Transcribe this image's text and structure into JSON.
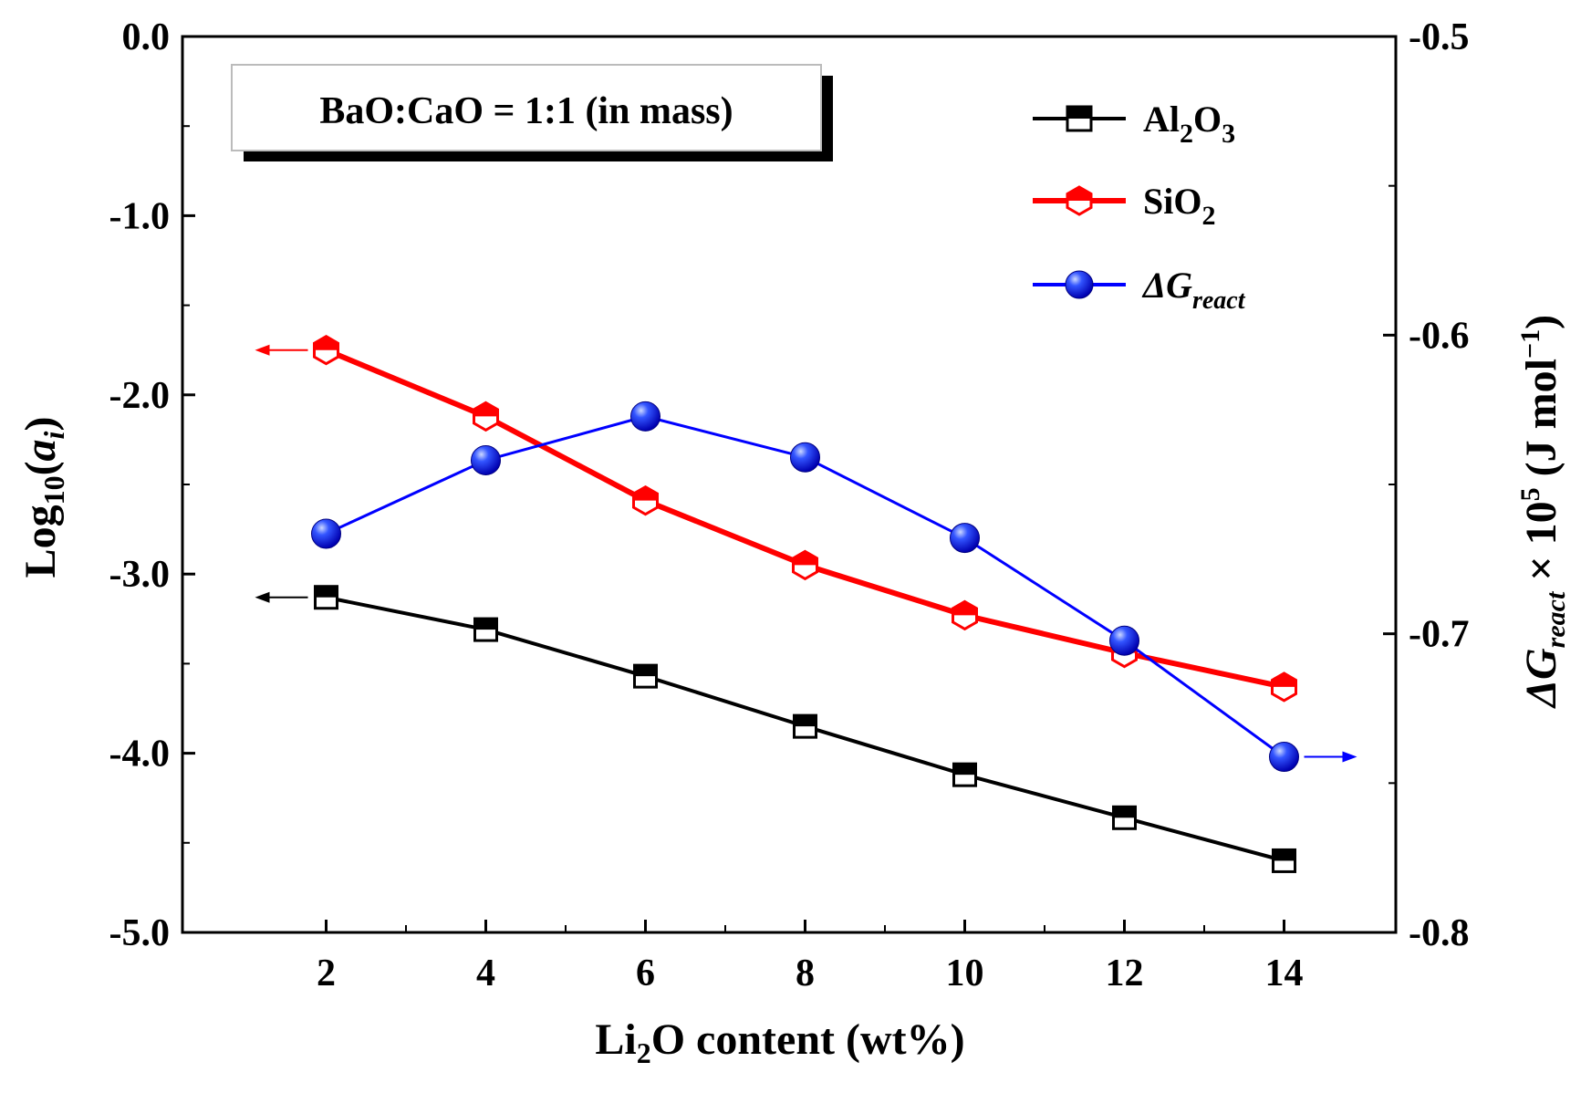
{
  "chart_data": {
    "type": "line",
    "annotation": "BaO:CaO = 1:1 (in mass)",
    "x": [
      2,
      4,
      6,
      8,
      10,
      12,
      14
    ],
    "xlabel": {
      "main": "Li",
      "sub": "2",
      "rest": "O content (wt%)"
    },
    "xlim": [
      0.2,
      15.4
    ],
    "xticks": [
      2,
      4,
      6,
      8,
      10,
      12,
      14
    ],
    "xtick_labels": [
      "2",
      "4",
      "6",
      "8",
      "10",
      "12",
      "14"
    ],
    "ylabel_left": {
      "main": "Log",
      "sub": "10",
      "open": "(",
      "italic": "a",
      "isub": "i",
      "close": ")"
    },
    "ylim_left": [
      -5.0,
      0.0
    ],
    "yticks_left": [
      0,
      -1,
      -2,
      -3,
      -4,
      -5
    ],
    "ytick_labels_left": [
      "0.0",
      "-1.0",
      "-2.0",
      "-3.0",
      "-4.0",
      "-5.0"
    ],
    "ylabel_right": {
      "italic": "ΔG",
      "isub": "react",
      "times": " × 10",
      "sup": "5",
      "unit": " (J mol",
      "usup": "−1",
      "close": ")"
    },
    "ylim_right": [
      -0.8,
      -0.5
    ],
    "yticks_right": [
      -0.5,
      -0.6,
      -0.7,
      -0.8
    ],
    "ytick_labels_right": [
      "-0.5",
      "-0.6",
      "-0.7",
      "-0.8"
    ],
    "series": [
      {
        "name": "Al2O3",
        "label_main": "Al",
        "label_sub1": "2",
        "label_mid": "O",
        "label_sub2": "3",
        "axis": "left",
        "color": "#000000",
        "marker": "half-square",
        "values": [
          -3.13,
          -3.31,
          -3.57,
          -3.85,
          -4.12,
          -4.36,
          -4.6
        ]
      },
      {
        "name": "SiO2",
        "label_main": "SiO",
        "label_sub1": "2",
        "axis": "left",
        "color": "#ff0000",
        "marker": "half-hexagon",
        "values": [
          -1.75,
          -2.12,
          -2.59,
          -2.95,
          -3.23,
          -3.44,
          -3.63
        ]
      },
      {
        "name": "ΔGreact",
        "label_main": "ΔG",
        "label_sub1": "react",
        "axis": "right",
        "color": "#0000ff",
        "marker": "sphere",
        "values": [
          -0.6665,
          -0.6419,
          -0.6272,
          -0.6409,
          -0.6679,
          -0.7023,
          -0.7412
        ]
      }
    ],
    "arrows": [
      {
        "series": "SiO2",
        "direction": "left",
        "color": "#ff0000"
      },
      {
        "series": "Al2O3",
        "direction": "left",
        "color": "#000000"
      },
      {
        "series": "ΔGreact",
        "direction": "right",
        "color": "#0000ff"
      }
    ],
    "legend_position": "top-right",
    "grid": false
  }
}
